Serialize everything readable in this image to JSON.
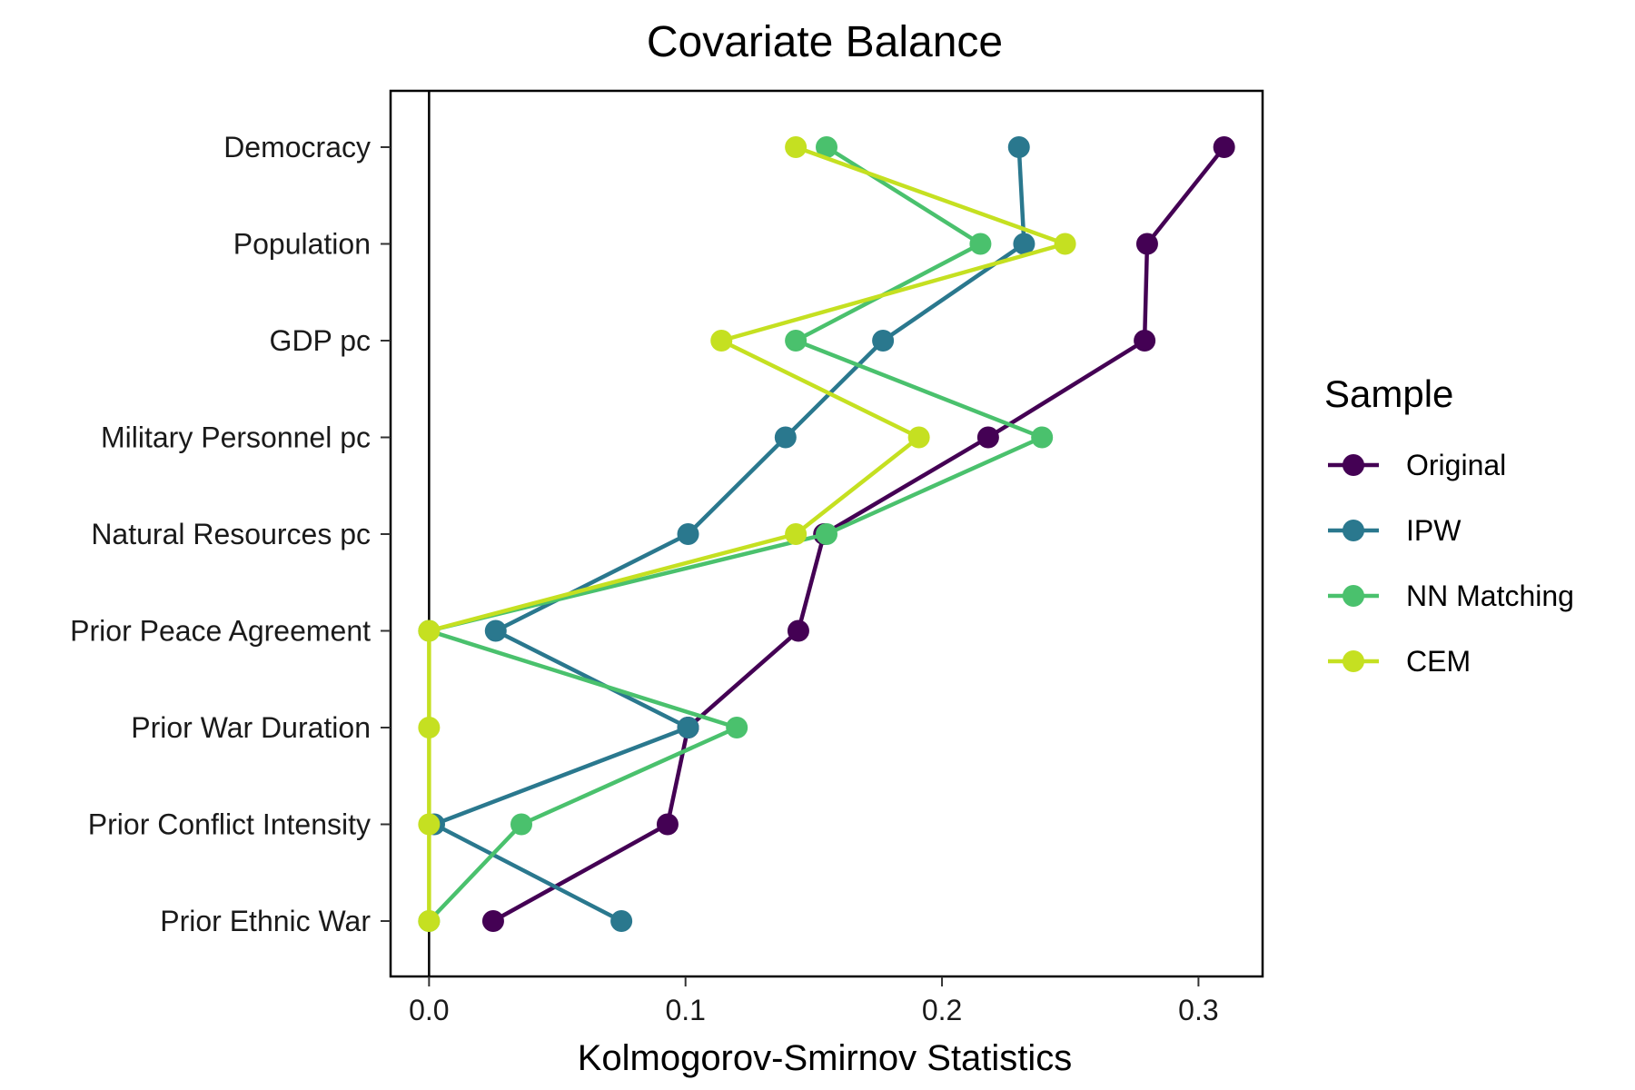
{
  "chart_data": {
    "type": "line",
    "title": "Covariate Balance",
    "xlabel": "Kolmogorov-Smirnov Statistics",
    "ylabel": "",
    "xlim": [
      -0.015,
      0.325
    ],
    "x_ticks": [
      0.0,
      0.1,
      0.2,
      0.3
    ],
    "x_tick_labels": [
      "0.0",
      "0.1",
      "0.2",
      "0.3"
    ],
    "categories": [
      "Democracy",
      "Population",
      "GDP pc",
      "Military Personnel pc",
      "Natural Resources pc",
      "Prior Peace Agreement",
      "Prior War Duration",
      "Prior Conflict Intensity",
      "Prior Ethnic War"
    ],
    "reference_line_x": 0.0,
    "legend_title": "Sample",
    "legend_position": "right",
    "grid": false,
    "series": [
      {
        "name": "Original",
        "color": "#440154",
        "values": [
          0.31,
          0.28,
          0.279,
          0.218,
          0.154,
          0.144,
          0.101,
          0.093,
          0.025
        ]
      },
      {
        "name": "IPW",
        "color": "#2a788e",
        "values": [
          0.23,
          0.232,
          0.177,
          0.139,
          0.101,
          0.026,
          0.101,
          0.002,
          0.075
        ]
      },
      {
        "name": "NN Matching",
        "color": "#4ac16d",
        "values": [
          0.155,
          0.215,
          0.143,
          0.239,
          0.155,
          0.0,
          0.12,
          0.036,
          0.0
        ]
      },
      {
        "name": "CEM",
        "color": "#c5e021",
        "values": [
          0.143,
          0.248,
          0.114,
          0.191,
          0.143,
          0.0,
          0.0,
          0.0,
          0.0
        ]
      }
    ]
  }
}
